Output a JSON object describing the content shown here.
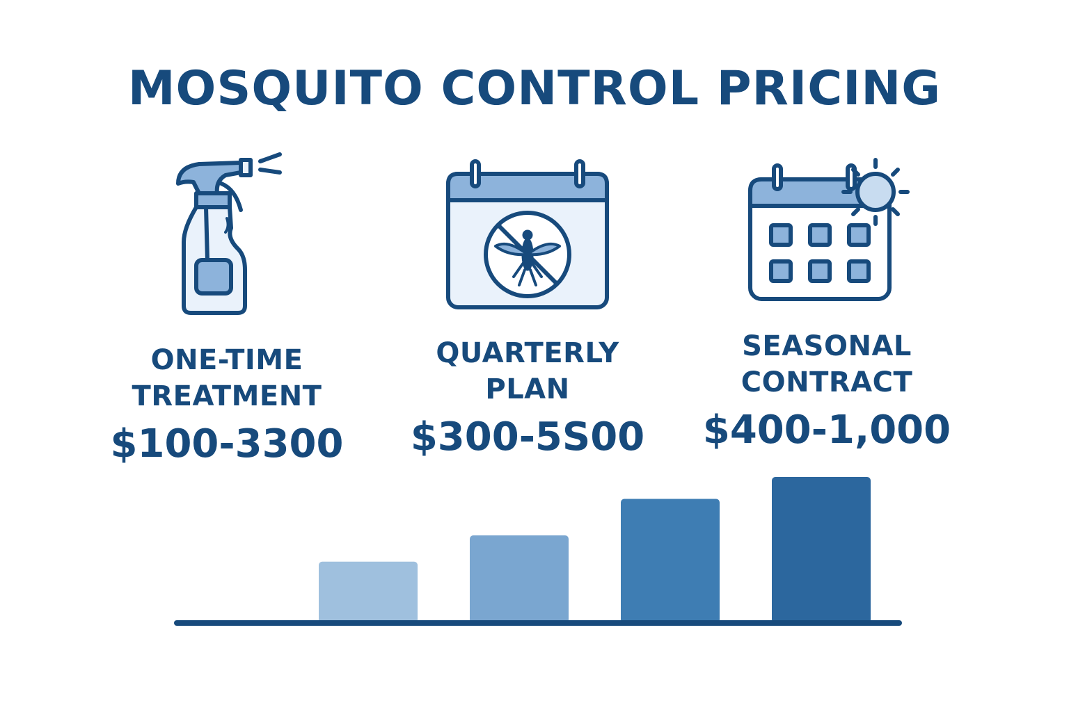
{
  "title": "MOSQUITO CONTROL PRICING",
  "plans": [
    {
      "name": "ONE-TIME\nTREATMENT",
      "price": "$100-3300",
      "icon": "spray-bottle-icon"
    },
    {
      "name": "QUARTERLY\nPLAN",
      "price": "$300-5S00",
      "icon": "calendar-no-mosquito-icon"
    },
    {
      "name": "SEASONAL\nCONTRACT",
      "price": "$400-1,000",
      "icon": "calendar-sun-icon"
    }
  ],
  "colors": {
    "primary": "#174a7c",
    "icon_fill": "#8db3db",
    "icon_light": "#eaf2fb"
  },
  "chart_data": {
    "type": "bar",
    "categories": [
      "",
      "",
      "",
      ""
    ],
    "values": [
      0.42,
      0.6,
      0.85,
      1.0
    ],
    "colors": [
      "#9fc0de",
      "#7aa6d0",
      "#3e7db3",
      "#2c679e"
    ]
  }
}
